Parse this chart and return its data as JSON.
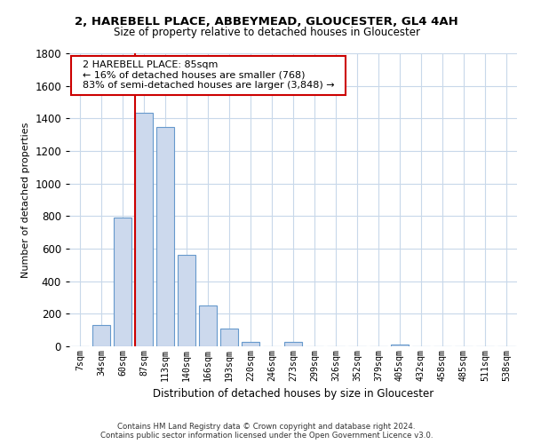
{
  "title1": "2, HAREBELL PLACE, ABBEYMEAD, GLOUCESTER, GL4 4AH",
  "title2": "Size of property relative to detached houses in Gloucester",
  "xlabel": "Distribution of detached houses by size in Gloucester",
  "ylabel": "Number of detached properties",
  "bar_labels": [
    "7sqm",
    "34sqm",
    "60sqm",
    "87sqm",
    "113sqm",
    "140sqm",
    "166sqm",
    "193sqm",
    "220sqm",
    "246sqm",
    "273sqm",
    "299sqm",
    "326sqm",
    "352sqm",
    "379sqm",
    "405sqm",
    "432sqm",
    "458sqm",
    "485sqm",
    "511sqm",
    "538sqm"
  ],
  "bar_values": [
    0,
    130,
    790,
    1435,
    1350,
    560,
    250,
    110,
    30,
    0,
    25,
    0,
    0,
    0,
    0,
    12,
    0,
    0,
    0,
    0,
    0
  ],
  "bar_color": "#ccd9ed",
  "bar_edge_color": "#6699cc",
  "marker_index": 3,
  "marker_color": "#cc0000",
  "annotation_title": "2 HAREBELL PLACE: 85sqm",
  "annotation_line1": "← 16% of detached houses are smaller (768)",
  "annotation_line2": "83% of semi-detached houses are larger (3,848) →",
  "annotation_box_color": "#ffffff",
  "annotation_box_edge": "#cc0000",
  "ylim": [
    0,
    1800
  ],
  "yticks": [
    0,
    200,
    400,
    600,
    800,
    1000,
    1200,
    1400,
    1600,
    1800
  ],
  "footer1": "Contains HM Land Registry data © Crown copyright and database right 2024.",
  "footer2": "Contains public sector information licensed under the Open Government Licence v3.0.",
  "bg_color": "#ffffff",
  "grid_color": "#c8d8ea"
}
